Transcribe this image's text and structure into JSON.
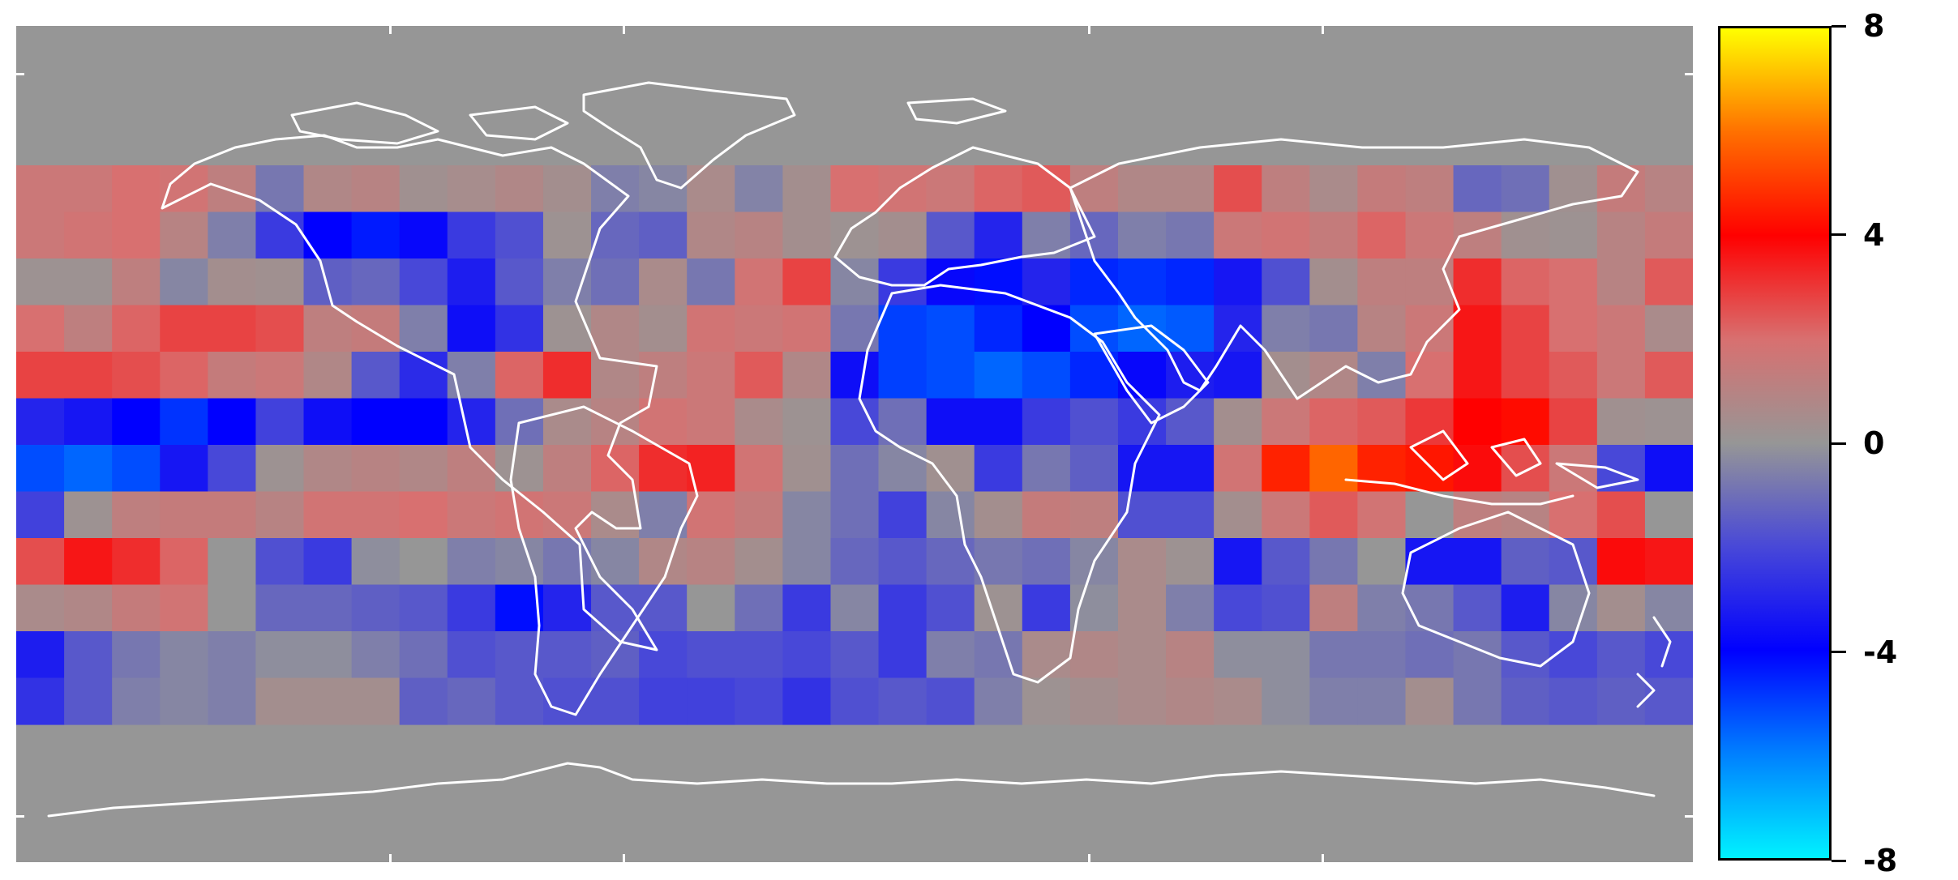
{
  "map": {
    "background": "#969696",
    "grid": {
      "rows": [
        [
          1.6,
          1.6,
          2.0,
          1.8,
          1.2,
          -0.8,
          0.8,
          1.0,
          0.3,
          0.5,
          0.8,
          0.4,
          -0.6,
          -0.4,
          0.6,
          -0.5,
          0.4,
          2.0,
          1.8,
          1.6,
          2.2,
          2.4,
          1.2,
          0.8,
          0.8,
          2.6,
          1.2,
          0.6,
          1.4,
          1.2,
          -1.2,
          -1.0,
          0.3,
          1.4,
          1.0
        ],
        [
          1.6,
          1.8,
          2.0,
          1.0,
          -0.6,
          -2.4,
          -4.0,
          -4.4,
          -3.8,
          -2.4,
          -1.8,
          0.2,
          -1.2,
          -1.4,
          0.8,
          1.0,
          0.4,
          0.2,
          0.4,
          -1.6,
          -3.0,
          -0.6,
          -1.2,
          -0.6,
          -0.8,
          1.6,
          1.8,
          1.4,
          2.2,
          1.6,
          1.2,
          0.3,
          0.2,
          1.0,
          1.4
        ],
        [
          0.2,
          0.2,
          1.2,
          -0.4,
          0.4,
          0.3,
          -1.4,
          -1.2,
          -2.0,
          -3.2,
          -1.6,
          -0.6,
          -1.0,
          0.6,
          -0.8,
          1.8,
          2.8,
          -0.4,
          -2.4,
          -3.8,
          -4.2,
          -3.0,
          -4.6,
          -4.8,
          -4.6,
          -3.4,
          -1.8,
          0.4,
          1.2,
          1.2,
          3.2,
          2.2,
          2.0,
          1.0,
          2.4
        ],
        [
          2.0,
          1.2,
          2.2,
          2.8,
          2.8,
          2.6,
          1.2,
          1.4,
          -0.6,
          -3.6,
          -2.6,
          0.2,
          0.8,
          0.4,
          1.8,
          1.6,
          1.8,
          -0.8,
          -5.0,
          -5.2,
          -4.6,
          -4.0,
          -5.2,
          -5.6,
          -5.4,
          -3.0,
          -0.6,
          -0.8,
          1.0,
          1.6,
          3.6,
          2.8,
          2.0,
          1.6,
          0.6
        ],
        [
          2.8,
          2.8,
          2.6,
          2.2,
          1.4,
          1.6,
          0.8,
          -1.6,
          -2.8,
          -0.6,
          2.2,
          3.2,
          0.8,
          1.2,
          1.6,
          2.4,
          0.8,
          -3.6,
          -5.0,
          -5.2,
          -5.6,
          -5.2,
          -4.6,
          -3.8,
          -3.2,
          -3.4,
          0.4,
          0.8,
          -0.6,
          2.0,
          3.6,
          2.8,
          2.4,
          1.6,
          2.4
        ],
        [
          -3.0,
          -3.4,
          -4.0,
          -4.8,
          -4.0,
          -2.2,
          -3.6,
          -4.0,
          -4.0,
          -3.0,
          -1.0,
          0.6,
          1.0,
          1.8,
          1.6,
          0.6,
          0.2,
          -2.0,
          -1.0,
          -3.6,
          -3.6,
          -2.4,
          -1.8,
          -2.4,
          -1.6,
          0.4,
          1.6,
          2.2,
          2.4,
          3.0,
          4.0,
          4.2,
          2.8,
          0.3,
          0.2
        ],
        [
          -5.2,
          -5.6,
          -5.2,
          -3.4,
          -2.0,
          0.2,
          0.8,
          1.0,
          0.8,
          1.2,
          0.2,
          1.2,
          2.2,
          3.2,
          3.4,
          1.8,
          0.3,
          -1.0,
          -0.4,
          0.3,
          -2.4,
          -0.8,
          -1.4,
          -3.4,
          -3.4,
          1.8,
          4.6,
          5.8,
          4.6,
          4.4,
          3.8,
          2.6,
          1.6,
          -2.0,
          -3.6
        ],
        [
          -2.2,
          0.2,
          1.2,
          1.4,
          1.4,
          1.0,
          1.8,
          1.8,
          2.0,
          1.6,
          1.8,
          1.6,
          0.6,
          -0.6,
          1.8,
          1.4,
          -0.4,
          -1.0,
          -2.2,
          -0.4,
          0.4,
          1.4,
          1.2,
          -1.8,
          -1.8,
          0.4,
          1.6,
          2.4,
          1.8,
          0.0,
          1.2,
          1.0,
          2.0,
          2.6,
          0.0
        ],
        [
          2.6,
          3.6,
          3.2,
          2.2,
          0.0,
          -1.8,
          -2.4,
          -0.2,
          0.0,
          -0.6,
          -0.4,
          -0.8,
          -0.4,
          0.8,
          1.0,
          0.4,
          -0.4,
          -1.2,
          -1.6,
          -1.2,
          -0.8,
          -1.0,
          -0.4,
          0.6,
          0.2,
          -3.4,
          -1.6,
          -0.8,
          0.0,
          -3.4,
          -3.4,
          -1.4,
          -1.6,
          3.8,
          3.6
        ],
        [
          0.6,
          0.8,
          1.4,
          1.8,
          0.0,
          -1.2,
          -1.2,
          -1.4,
          -1.6,
          -2.4,
          -4.2,
          -3.0,
          -1.6,
          -1.6,
          0.0,
          -1.0,
          -2.4,
          -0.4,
          -2.4,
          -1.8,
          0.2,
          -2.4,
          -0.2,
          0.6,
          -0.6,
          -2.0,
          -1.8,
          1.2,
          -0.6,
          -0.8,
          -1.6,
          -3.2,
          -0.4,
          0.4,
          -0.4
        ],
        [
          -3.2,
          -1.6,
          -0.8,
          -0.4,
          -0.6,
          -0.2,
          -0.2,
          -0.6,
          -1.0,
          -1.8,
          -1.6,
          -1.6,
          -1.4,
          -2.0,
          -1.8,
          -1.8,
          -2.0,
          -1.6,
          -2.4,
          -0.6,
          -0.8,
          0.6,
          0.8,
          0.6,
          1.0,
          -0.2,
          -0.2,
          -0.8,
          -0.8,
          -1.0,
          -0.8,
          -1.6,
          -2.0,
          -1.6,
          -2.0
        ],
        [
          -2.6,
          -1.6,
          -0.6,
          -0.4,
          -0.6,
          0.4,
          0.4,
          0.4,
          -1.4,
          -1.2,
          -1.6,
          -1.8,
          -1.8,
          -2.2,
          -2.2,
          -2.0,
          -2.6,
          -1.8,
          -1.6,
          -1.8,
          -0.6,
          0.2,
          0.4,
          0.6,
          0.8,
          0.6,
          -0.2,
          -0.6,
          -0.6,
          0.4,
          -0.8,
          -1.4,
          -1.6,
          -1.4,
          -1.6
        ]
      ]
    }
  },
  "colorbar": {
    "min": -8,
    "max": 8,
    "colors": [
      "#00f2ff",
      "#0080ff",
      "#0000ff",
      "#4848d8",
      "#969696",
      "#d87070",
      "#ff0000",
      "#ff7000",
      "#ffff00"
    ],
    "tick_labels": [
      {
        "value": 8,
        "label": "8"
      },
      {
        "value": 4,
        "label": "4"
      },
      {
        "value": 0,
        "label": "0"
      },
      {
        "value": -4,
        "label": "-4"
      },
      {
        "value": -8,
        "label": "-8"
      }
    ]
  }
}
